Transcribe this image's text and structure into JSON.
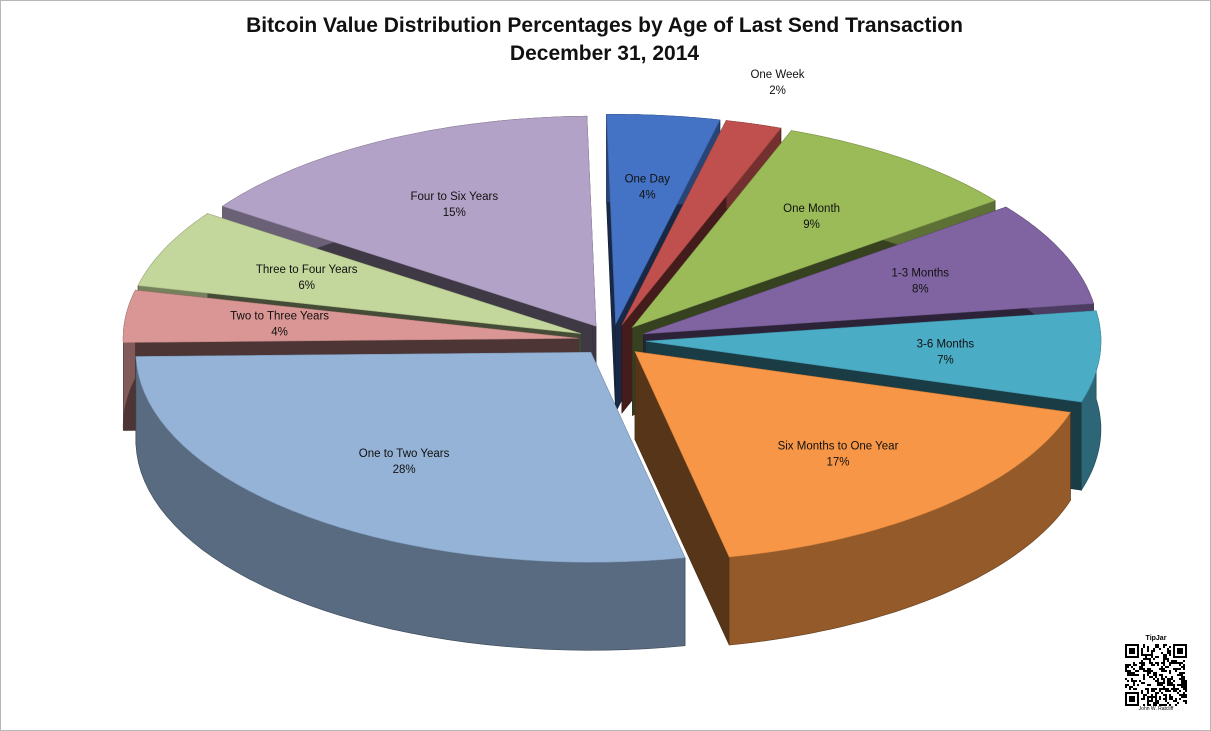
{
  "chart_data": {
    "type": "pie",
    "title": "Bitcoin Value Distribution Percentages by Age of Last Send Transaction",
    "subtitle": "December 31, 2014",
    "slices": [
      {
        "label": "One Day",
        "value": 4,
        "value_label": "4%",
        "color": "#4472c4"
      },
      {
        "label": "One Week",
        "value": 2,
        "value_label": "2%",
        "color": "#c0504d"
      },
      {
        "label": "One Month",
        "value": 9,
        "value_label": "9%",
        "color": "#9bbb59"
      },
      {
        "label": "1-3 Months",
        "value": 8,
        "value_label": "8%",
        "color": "#8064a2"
      },
      {
        "label": "3-6 Months",
        "value": 7,
        "value_label": "7%",
        "color": "#4bacc6"
      },
      {
        "label": "Six Months to One Year",
        "value": 17,
        "value_label": "17%",
        "color": "#f79646"
      },
      {
        "label": "One to Two Years",
        "value": 28,
        "value_label": "28%",
        "color": "#95b3d7"
      },
      {
        "label": "Two to Three Years",
        "value": 4,
        "value_label": "4%",
        "color": "#d99694"
      },
      {
        "label": "Three to Four Years",
        "value": 6,
        "value_label": "6%",
        "color": "#c3d69b"
      },
      {
        "label": "Four to Six Years",
        "value": 15,
        "value_label": "15%",
        "color": "#b3a2c7"
      }
    ],
    "exploded": true,
    "three_d": true
  },
  "qr": {
    "caption": "TipJar",
    "author": "John W. Ratcliff"
  }
}
